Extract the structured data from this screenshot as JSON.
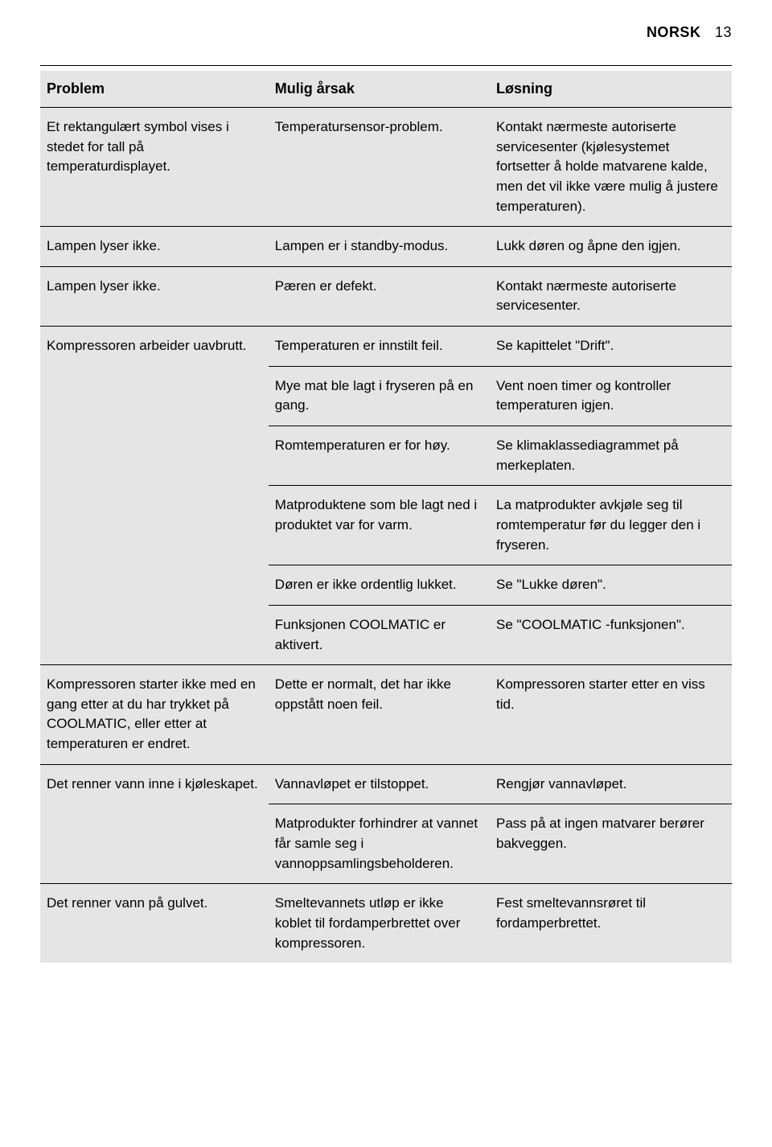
{
  "page_header": {
    "label": "NORSK",
    "page_number": "13"
  },
  "table": {
    "headers": {
      "problem": "Problem",
      "cause": "Mulig årsak",
      "solution": "Løsning"
    },
    "col_widths_pct": [
      33,
      32,
      35
    ],
    "background_color": "#e5e5e5",
    "border_color": "#000000",
    "font_size_pt": 12,
    "header_font_weight": "bold",
    "rows": [
      {
        "problem": "Et rektangulært symbol vises i stedet for tall på temperaturdisplayet.",
        "cause": "Temperatursensor-prob­lem.",
        "solution": "Kontakt nærmeste autoriserte servicesenter (kjølesystemet fortsetter å holde matvarene kalde, men det vil ikke være mulig å justere temperaturen).",
        "sep": "full"
      },
      {
        "problem": "Lampen lyser ikke.",
        "cause": "Lampen er i standby-modus.",
        "solution": "Lukk døren og åpne den igjen.",
        "sep": "full"
      },
      {
        "problem": "Lampen lyser ikke.",
        "cause": "Pæren er defekt.",
        "solution": "Kontakt nærmeste autoriserte servicesenter.",
        "sep": "full"
      },
      {
        "problem": "Kompressoren arbeider uavbrutt.",
        "cause": "Temperaturen er innstilt feil.",
        "solution": "Se kapittelet \"Drift\".",
        "sep": "full"
      },
      {
        "problem": "",
        "cause": "Mye mat ble lagt i fryseren på en gang.",
        "solution": "Vent noen timer og kontroller temperaturen igjen.",
        "sep": "23"
      },
      {
        "problem": "",
        "cause": "Romtemperaturen er for høy.",
        "solution": "Se klimaklassediagrammet på merkeplaten.",
        "sep": "23"
      },
      {
        "problem": "",
        "cause": "Matproduktene som ble lagt ned i produktet var for varm.",
        "solution": "La matprodukter avkjøle seg til romtemperatur før du legger den i fryseren.",
        "sep": "23"
      },
      {
        "problem": "",
        "cause": "Døren er ikke ordentlig lukket.",
        "solution": "Se \"Lukke døren\".",
        "sep": "23"
      },
      {
        "problem": "",
        "cause": "Funksjonen COOLMATIC er aktivert.",
        "solution": "Se \"COOLMATIC -funksjo­nen\".",
        "sep": "23"
      },
      {
        "problem": "Kompressoren starter ikke med en gang etter at du har trykket på COOLMATIC, eller etter at temperaturen er endret.",
        "cause": "Dette er normalt, det har ikke oppstått noen feil.",
        "solution": "Kompressoren starter etter en viss tid.",
        "sep": "full"
      },
      {
        "problem": "Det renner vann inne i kjøleskapet.",
        "cause": "Vannavløpet er tilstoppet.",
        "solution": "Rengjør vannavløpet.",
        "sep": "full"
      },
      {
        "problem": "",
        "cause": "Matprodukter forhindrer at vannet får samle seg i vannoppsamlingsbeholderen.",
        "solution": "Pass på at ingen matvarer berører bakveggen.",
        "sep": "23"
      },
      {
        "problem": "Det renner vann på gulvet.",
        "cause": "Smeltevannets utløp er ikke koblet til fordamperbrettet over kompressoren.",
        "solution": "Fest smeltevannsrøret til fordamperbrettet.",
        "sep": "full"
      }
    ]
  }
}
